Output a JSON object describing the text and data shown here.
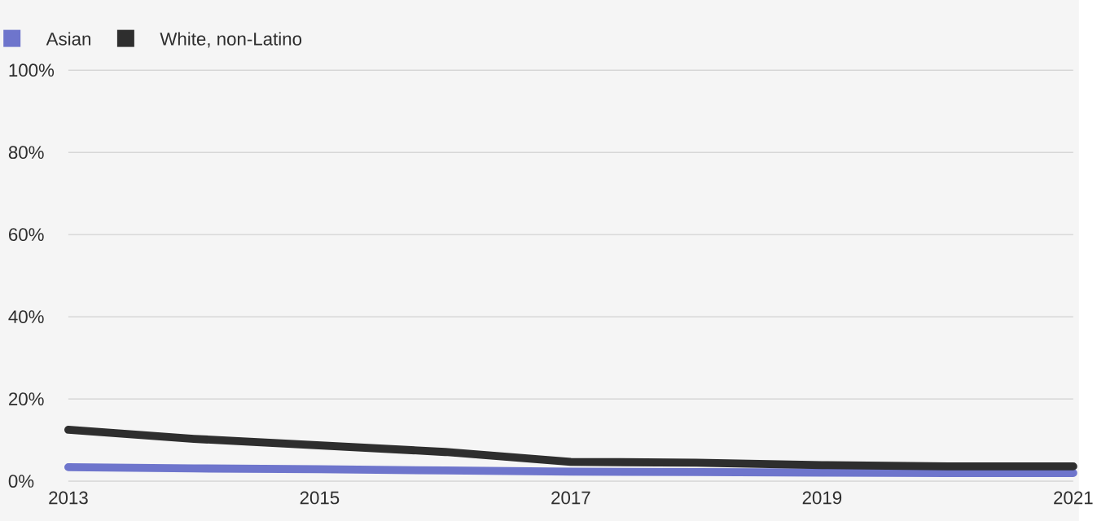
{
  "chart_data": {
    "type": "line",
    "x": [
      2013,
      2014,
      2015,
      2016,
      2017,
      2018,
      2019,
      2020,
      2021
    ],
    "series": [
      {
        "name": "Asian",
        "color": "#6e75cc",
        "values": [
          3.4,
          3.1,
          2.9,
          2.6,
          2.3,
          2.2,
          2.1,
          2.0,
          2.0
        ]
      },
      {
        "name": "White, non-Latino",
        "color": "#2e2e2e",
        "values": [
          12.5,
          10.3,
          8.7,
          7.1,
          4.7,
          4.5,
          3.9,
          3.6,
          3.6
        ]
      }
    ],
    "xlim": [
      2013,
      2021
    ],
    "xticks": [
      2013,
      2015,
      2017,
      2019,
      2021
    ],
    "ylim": [
      0,
      100
    ],
    "yticks": [
      {
        "value": 0,
        "label": "0%"
      },
      {
        "value": 20,
        "label": "20%"
      },
      {
        "value": 40,
        "label": "40%"
      },
      {
        "value": 60,
        "label": "60%"
      },
      {
        "value": 80,
        "label": "80%"
      },
      {
        "value": 100,
        "label": "100%"
      }
    ],
    "grid": "y",
    "legend": "top left",
    "marker": "none",
    "line_style": "solid"
  }
}
